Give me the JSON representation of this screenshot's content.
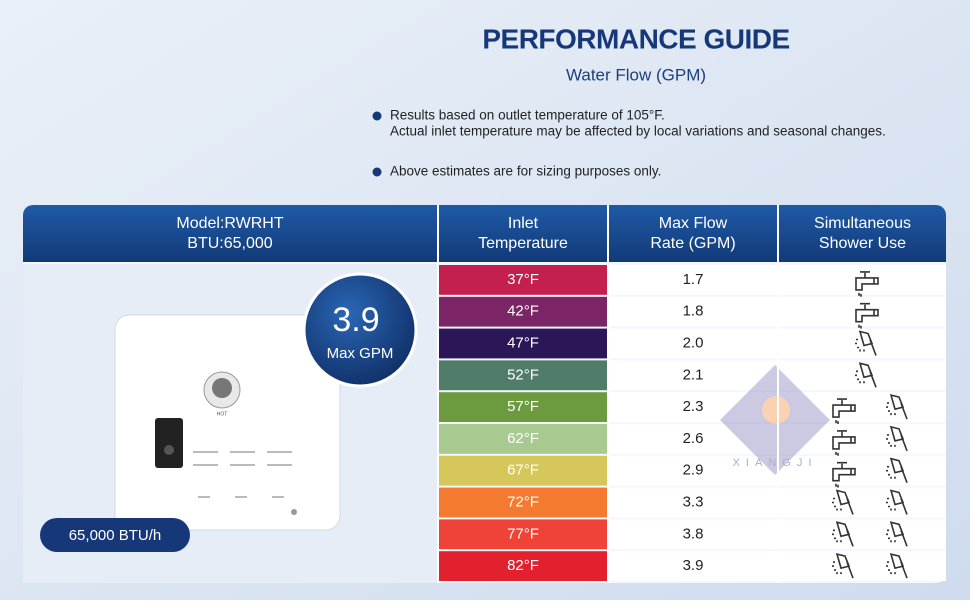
{
  "header": {
    "title": "PERFORMANCE GUIDE",
    "subtitle": "Water Flow (GPM)"
  },
  "notes": [
    {
      "lines": [
        "Results based on outlet temperature of 105°F.",
        "Actual inlet temperature may be affected by local variations and seasonal changes."
      ]
    },
    {
      "lines": [
        "Above estimates are for sizing purposes only."
      ]
    }
  ],
  "table": {
    "headers": [
      [
        "Model:RWRHT",
        "BTU:65,000"
      ],
      [
        "Inlet",
        "Temperature"
      ],
      [
        "Max Flow",
        "Rate (GPM)"
      ],
      [
        "Simultaneous",
        "Shower Use"
      ]
    ],
    "rows": [
      [
        "37°F",
        "1.7"
      ],
      [
        "42°F",
        "1.8"
      ],
      [
        "47°F",
        "2.0"
      ],
      [
        "52°F",
        "2.1"
      ],
      [
        "57°F",
        "2.3"
      ],
      [
        "62°F",
        "2.6"
      ],
      [
        "67°F",
        "2.9"
      ],
      [
        "72°F",
        "3.3"
      ],
      [
        "77°F",
        "3.8"
      ],
      [
        "82°F",
        "3.9"
      ]
    ],
    "row_colors": [
      "#c4204f",
      "#7b2566",
      "#2b1657",
      "#4f7d6a",
      "#6c9a3e",
      "#a8c990",
      "#d6c75a",
      "#f47a30",
      "#ee4336",
      "#e3202e"
    ]
  },
  "badge": {
    "value": "3.9",
    "label": "Max GPM"
  },
  "rating": "65,000 BTU/h",
  "heater_label": "HOT",
  "watermark": "XIANGJI"
}
